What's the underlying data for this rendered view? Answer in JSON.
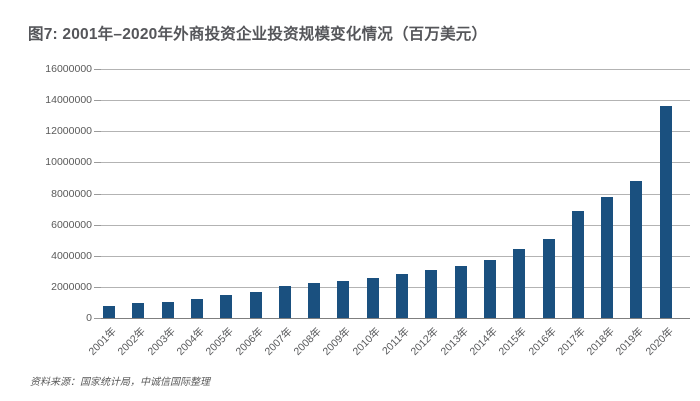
{
  "page": {
    "title": "图7: 2001年–2020年外商投资企业投资规模变化情况（百万美元）",
    "source_note": "资料来源：国家统计局，中诚信国际整理"
  },
  "colors": {
    "bar": "#1a507f",
    "title_text": "#55565a",
    "axis_text": "#595959",
    "gridline": "#b3b3b3",
    "axis_line": "#7f7f7f",
    "background": "#ffffff"
  },
  "chart_data": {
    "type": "bar",
    "title": "图7: 2001年–2020年外商投资企业投资规模变化情况（百万美元）",
    "unit": "百万美元",
    "categories": [
      "2001年",
      "2002年",
      "2003年",
      "2004年",
      "2005年",
      "2006年",
      "2007年",
      "2008年",
      "2009年",
      "2010年",
      "2011年",
      "2012年",
      "2013年",
      "2014年",
      "2015年",
      "2016年",
      "2017年",
      "2018年",
      "2019年",
      "2020年"
    ],
    "values": [
      800000,
      950000,
      1050000,
      1250000,
      1450000,
      1700000,
      2050000,
      2250000,
      2400000,
      2600000,
      2800000,
      3100000,
      3350000,
      3750000,
      4450000,
      5050000,
      6850000,
      7800000,
      8800000,
      13600000
    ],
    "xlabel": "",
    "ylabel": "",
    "ylim": [
      0,
      16000000
    ],
    "y_tick_interval": 2000000,
    "y_tick_labels": [
      "0",
      "2000000",
      "4000000",
      "6000000",
      "8000000",
      "10000000",
      "12000000",
      "14000000",
      "16000000"
    ],
    "grid": true,
    "legend": false,
    "source": "资料来源：国家统计局，中诚信国际整理"
  }
}
